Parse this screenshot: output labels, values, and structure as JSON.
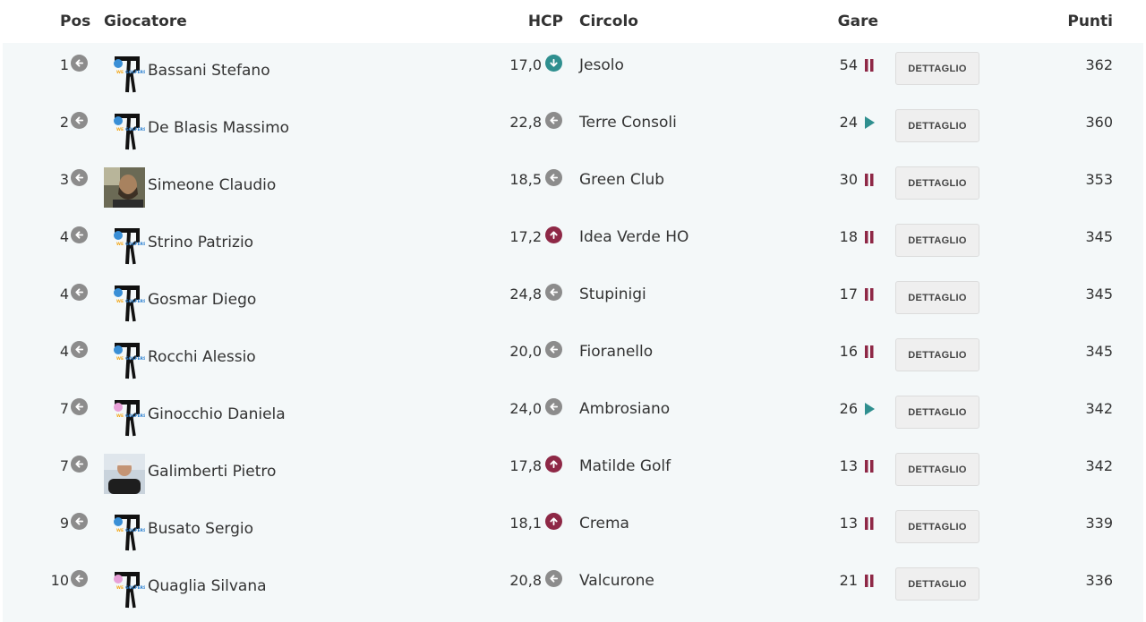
{
  "header": {
    "pos": "Pos",
    "giocatore": "Giocatore",
    "hcp": "HCP",
    "circolo": "Circolo",
    "gare": "Gare",
    "punti": "Punti"
  },
  "button_label": "DETTAGLIO",
  "colors": {
    "grey": "#8c8c8c",
    "teal": "#2f8f8f",
    "maroon": "#8e2846"
  },
  "rows": [
    {
      "pos": "1",
      "name": "Bassani Stefano",
      "avatar": "wegolfers-logo-blue",
      "hcp": "17,0",
      "hcp_trend": "down",
      "club": "Jesolo",
      "gare": "54",
      "status": "pause",
      "punti": "362"
    },
    {
      "pos": "2",
      "name": "De Blasis Massimo",
      "avatar": "wegolfers-logo-blue",
      "hcp": "22,8",
      "hcp_trend": "same",
      "club": "Terre Consoli",
      "gare": "24",
      "status": "play",
      "punti": "360"
    },
    {
      "pos": "3",
      "name": "Simeone Claudio",
      "avatar": "photo",
      "hcp": "18,5",
      "hcp_trend": "same",
      "club": "Green Club",
      "gare": "30",
      "status": "pause",
      "punti": "353"
    },
    {
      "pos": "4",
      "name": "Strino Patrizio",
      "avatar": "wegolfers-logo-blue",
      "hcp": "17,2",
      "hcp_trend": "up",
      "club": "Idea Verde HO",
      "gare": "18",
      "status": "pause",
      "punti": "345"
    },
    {
      "pos": "4",
      "name": "Gosmar Diego",
      "avatar": "wegolfers-logo-blue",
      "hcp": "24,8",
      "hcp_trend": "same",
      "club": "Stupinigi",
      "gare": "17",
      "status": "pause",
      "punti": "345"
    },
    {
      "pos": "4",
      "name": "Rocchi Alessio",
      "avatar": "wegolfers-logo-blue",
      "hcp": "20,0",
      "hcp_trend": "same",
      "club": "Fioranello",
      "gare": "16",
      "status": "pause",
      "punti": "345"
    },
    {
      "pos": "7",
      "name": "Ginocchio Daniela",
      "avatar": "wegolfers-logo-pink",
      "hcp": "24,0",
      "hcp_trend": "same",
      "club": "Ambrosiano",
      "gare": "26",
      "status": "play",
      "punti": "342"
    },
    {
      "pos": "7",
      "name": "Galimberti Pietro",
      "avatar": "photo",
      "hcp": "17,8",
      "hcp_trend": "up",
      "club": "Matilde Golf",
      "gare": "13",
      "status": "pause",
      "punti": "342"
    },
    {
      "pos": "9",
      "name": "Busato Sergio",
      "avatar": "wegolfers-logo-blue",
      "hcp": "18,1",
      "hcp_trend": "up",
      "club": "Crema",
      "gare": "13",
      "status": "pause",
      "punti": "339"
    },
    {
      "pos": "10",
      "name": "Quaglia Silvana",
      "avatar": "wegolfers-logo-pink",
      "hcp": "20,8",
      "hcp_trend": "same",
      "club": "Valcurone",
      "gare": "21",
      "status": "pause",
      "punti": "336"
    }
  ]
}
